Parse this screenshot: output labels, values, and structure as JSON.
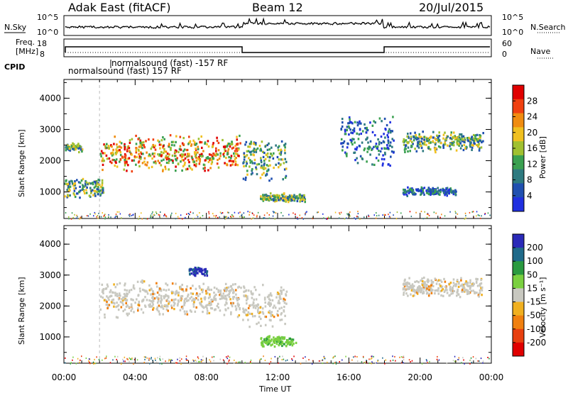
{
  "header": {
    "station": "Adak East (fitACF)",
    "beam": "Beam 12",
    "date": "20/Jul/2015"
  },
  "noise_panel": {
    "left_label": "N.Sky",
    "right_label": "N.Search",
    "ticks": [
      "10^5",
      "10^0"
    ]
  },
  "freq_panel": {
    "left_label_1": "Freq.",
    "left_label_2": "[MHz]",
    "left_ticks": [
      "18",
      "8"
    ],
    "right_label": "Nave",
    "right_ticks": [
      "60",
      "0"
    ]
  },
  "cpid_panel": {
    "label": "CPID",
    "entries": [
      "normalsound (fast) -157 RF",
      "normalsound (fast) 157 RF"
    ]
  },
  "colors": {
    "power": [
      "#2030e0",
      "#2050b0",
      "#2e7a80",
      "#3aa050",
      "#a0c030",
      "#f0c020",
      "#f08c10",
      "#f04010",
      "#e00000"
    ],
    "velocity": [
      "#2a2ab8",
      "#1f6a8a",
      "#2a9a40",
      "#7ad040",
      "#c8c8c0",
      "#f0b020",
      "#f08010",
      "#e84010",
      "#e00000"
    ]
  },
  "chart_data": [
    {
      "type": "heatmap",
      "title": "",
      "ylabel": "Slant Range [km]",
      "xlabel": "Time UT",
      "x_ticks": [
        "00:00",
        "04:00",
        "08:00",
        "12:00",
        "16:00",
        "20:00",
        "00:00"
      ],
      "y_ticks": [
        "1000",
        "2000",
        "3000",
        "4000"
      ],
      "xlim_hours": [
        0,
        24
      ],
      "ylim_km": [
        150,
        4600
      ],
      "colorbar": {
        "label": "Power [dB]",
        "ticks": [
          "4",
          "8",
          "12",
          "16",
          "20",
          "24",
          "28"
        ],
        "range": [
          0,
          30
        ]
      },
      "regions": [
        {
          "t0": 2.0,
          "t1": 9.9,
          "range": [
            1650,
            2900
          ],
          "level": "high"
        },
        {
          "t0": 0.0,
          "t1": 1.0,
          "range": [
            2300,
            2600
          ],
          "level": "mid"
        },
        {
          "t0": 0.0,
          "t1": 2.2,
          "range": [
            800,
            1500
          ],
          "level": "mid"
        },
        {
          "t0": 10.0,
          "t1": 12.5,
          "range": [
            1300,
            2800
          ],
          "level": "mid"
        },
        {
          "t0": 11.0,
          "t1": 13.5,
          "range": [
            700,
            1000
          ],
          "level": "mid"
        },
        {
          "t0": 19.0,
          "t1": 23.5,
          "range": [
            2300,
            3000
          ],
          "level": "mid"
        },
        {
          "t0": 19.0,
          "t1": 22.0,
          "range": [
            900,
            1200
          ],
          "level": "low"
        },
        {
          "t0": 15.5,
          "t1": 18.5,
          "range": [
            1800,
            3500
          ],
          "level": "low"
        }
      ]
    },
    {
      "type": "heatmap",
      "title": "",
      "ylabel": "Slant Range [km]",
      "xlabel": "Time UT",
      "x_ticks": [
        "00:00",
        "04:00",
        "08:00",
        "12:00",
        "16:00",
        "20:00",
        "00:00"
      ],
      "y_ticks": [
        "1000",
        "2000",
        "3000",
        "4000"
      ],
      "xlim_hours": [
        0,
        24
      ],
      "ylim_km": [
        150,
        4600
      ],
      "colorbar": {
        "label": "Velocity [m s⁻¹]",
        "ticks": [
          "200",
          "100",
          "50",
          "15",
          "-15",
          "-50",
          "-100",
          "-200"
        ],
        "range": [
          -250,
          250
        ]
      },
      "regions": [
        {
          "t0": 2.0,
          "t1": 9.9,
          "range": [
            1650,
            2900
          ],
          "level": "zero"
        },
        {
          "t0": 10.0,
          "t1": 12.5,
          "range": [
            1300,
            2800
          ],
          "level": "zero"
        },
        {
          "t0": 11.0,
          "t1": 13.0,
          "range": [
            700,
            1100
          ],
          "level": "pos"
        },
        {
          "t0": 7.0,
          "t1": 8.0,
          "range": [
            3000,
            3300
          ],
          "level": "strong_pos"
        },
        {
          "t0": 19.0,
          "t1": 23.5,
          "range": [
            2300,
            3000
          ],
          "level": "zero"
        }
      ]
    }
  ]
}
